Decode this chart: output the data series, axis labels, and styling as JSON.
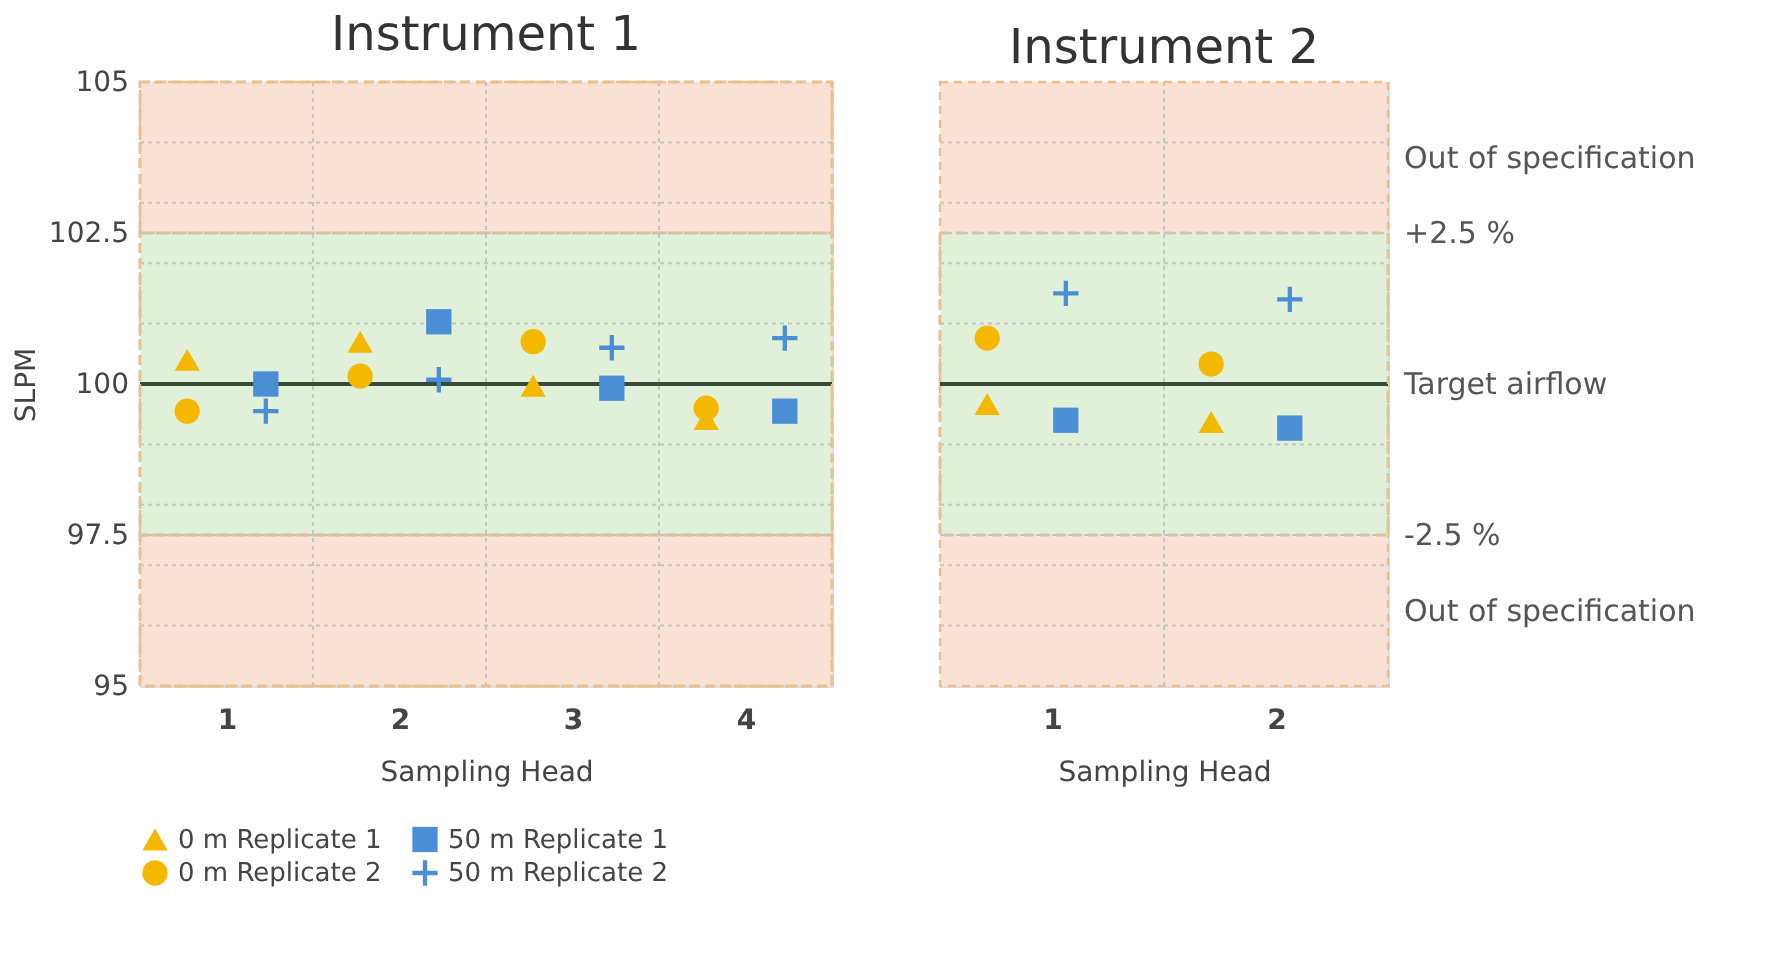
{
  "chart_data": [
    {
      "type": "scatter",
      "title": "Instrument 1",
      "xlabel": "Sampling Head",
      "ylabel": "SLPM",
      "categories": [
        "1",
        "2",
        "3",
        "4"
      ],
      "ylim": [
        95,
        105
      ],
      "yticks": [
        95,
        {
          "value": 96,
          "label": null
        },
        {
          "value": 97,
          "label": null
        },
        97.5,
        {
          "value": 98,
          "label": null
        },
        {
          "value": 99,
          "label": null
        },
        100,
        {
          "value": 101,
          "label": null
        },
        {
          "value": 102,
          "label": null
        },
        102.5,
        {
          "value": 103,
          "label": null
        },
        {
          "value": 104,
          "label": null
        },
        105
      ],
      "grid": true,
      "legend": "bottom",
      "series": [
        {
          "name": "0 m Replicate 1",
          "color": "#f5b800",
          "marker": "triangle",
          "values": [
            100.4,
            100.7,
            99.97,
            99.42
          ]
        },
        {
          "name": "0 m Replicate 2",
          "color": "#f5b800",
          "marker": "circle",
          "values": [
            99.55,
            100.13,
            100.7,
            99.6
          ]
        },
        {
          "name": "50 m Replicate 1",
          "color": "#4a8fd6",
          "marker": "square",
          "values": [
            100.0,
            101.03,
            99.93,
            99.55
          ]
        },
        {
          "name": "50 m Replicate 2",
          "color": "#4a8fd6",
          "marker": "cross",
          "values": [
            99.55,
            100.07,
            100.6,
            100.76
          ]
        }
      ],
      "bands": [
        {
          "axis": "y",
          "from": 102.5,
          "to": 105,
          "label": null,
          "color": "#fbe1d3"
        },
        {
          "axis": "y",
          "from": 97.5,
          "to": 102.5,
          "label": null,
          "color": "#e1f0d8"
        },
        {
          "axis": "y",
          "from": 95,
          "to": 97.5,
          "label": null,
          "color": "#fbe1d3"
        }
      ],
      "ref_lines": [
        {
          "axis": "y",
          "value": 100,
          "label": null,
          "color": "#3a4a3a",
          "line_style": "solid"
        }
      ]
    },
    {
      "type": "scatter",
      "title": "Instrument 2",
      "xlabel": "Sampling Head",
      "categories": [
        "1",
        "2"
      ],
      "ylim": [
        95,
        105
      ],
      "yticks": [
        95,
        {
          "value": 96,
          "label": null
        },
        {
          "value": 97,
          "label": null
        },
        97.5,
        {
          "value": 98,
          "label": null
        },
        {
          "value": 99,
          "label": null
        },
        100,
        {
          "value": 101,
          "label": null
        },
        {
          "value": 102,
          "label": null
        },
        102.5,
        {
          "value": 103,
          "label": null
        },
        {
          "value": 104,
          "label": null
        },
        105
      ],
      "tick_labels": "x",
      "grid": true,
      "legend": false,
      "series": [
        {
          "name": "0 m Replicate 1",
          "color": "#f5b800",
          "marker": "triangle",
          "values": [
            99.67,
            99.37
          ]
        },
        {
          "name": "0 m Replicate 2",
          "color": "#f5b800",
          "marker": "circle",
          "values": [
            100.76,
            100.33
          ]
        },
        {
          "name": "50 m Replicate 1",
          "color": "#4a8fd6",
          "marker": "square",
          "values": [
            99.4,
            99.27
          ]
        },
        {
          "name": "50 m Replicate 2",
          "color": "#4a8fd6",
          "marker": "cross",
          "values": [
            101.5,
            101.4
          ]
        }
      ],
      "bands": [
        {
          "axis": "y",
          "from": 102.5,
          "to": 105,
          "label": "Out of specification",
          "color": "#fbe1d3"
        },
        {
          "axis": "y",
          "from": 97.5,
          "to": 102.5,
          "label": null,
          "color": "#e1f0d8"
        },
        {
          "axis": "y",
          "from": 95,
          "to": 97.5,
          "label": "Out of specification",
          "color": "#fbe1d3"
        }
      ],
      "ref_lines": [
        {
          "axis": "y",
          "value": 100,
          "label": "Target airflow",
          "color": "#3a4a3a",
          "line_style": "solid"
        }
      ],
      "annotations": [
        "+2.5 %",
        "-2.5 %"
      ]
    }
  ]
}
